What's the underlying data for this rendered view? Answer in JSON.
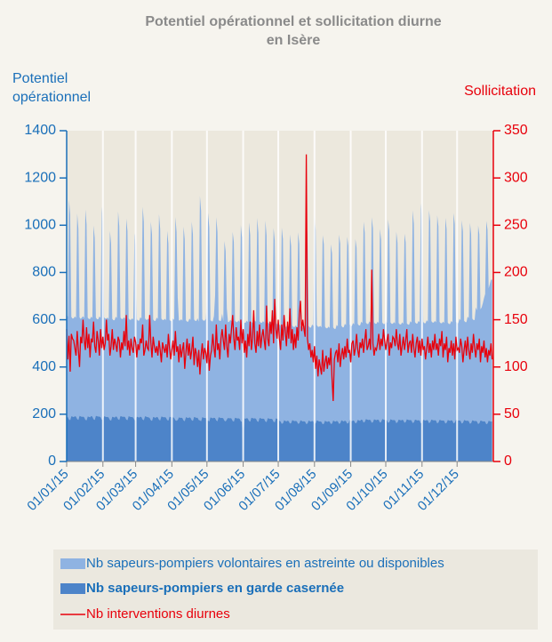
{
  "chart_data": {
    "type": "area-line",
    "title": [
      "Potentiel opérationnel et sollicitation diurne",
      "en Isère"
    ],
    "y_label": [
      "Potentiel",
      "opérationnel"
    ],
    "y2_label": "Sollicitation",
    "xlim": [
      0,
      365
    ],
    "xticks": [
      {
        "value": 0,
        "label": "01/01/15"
      },
      {
        "value": 31,
        "label": "01/02/15"
      },
      {
        "value": 59,
        "label": "01/03/15"
      },
      {
        "value": 90,
        "label": "01/04/15"
      },
      {
        "value": 120,
        "label": "01/05/15"
      },
      {
        "value": 151,
        "label": "01/06/15"
      },
      {
        "value": 181,
        "label": "01/07/15"
      },
      {
        "value": 212,
        "label": "01/08/15"
      },
      {
        "value": 243,
        "label": "01/09/15"
      },
      {
        "value": 273,
        "label": "01/10/15"
      },
      {
        "value": 304,
        "label": "01/11/15"
      },
      {
        "value": 334,
        "label": "01/12/15"
      }
    ],
    "ylim": [
      0,
      1400
    ],
    "yticks": [
      0,
      200,
      400,
      600,
      800,
      1000,
      1200,
      1400
    ],
    "y2lim": [
      0,
      350
    ],
    "y2ticks": [
      0,
      50,
      100,
      150,
      200,
      250,
      300,
      350
    ],
    "grid": true,
    "stacked": true,
    "series": [
      {
        "name": "Nb sapeurs-pompiers volontaires en astreinte ou disponibles",
        "color": "#8fb3e2",
        "kind": "area",
        "values": [
          430,
          425,
          930,
          870,
          420,
          415,
          418,
          422,
          418,
          870,
          810,
          416,
          412,
          420,
          425,
          420,
          890,
          830,
          418,
          414,
          416,
          420,
          418,
          820,
          770,
          415,
          410,
          412,
          424,
          420,
          900,
          840,
          418,
          415,
          417,
          420,
          416,
          800,
          750,
          414,
          410,
          412,
          422,
          418,
          880,
          820,
          416,
          412,
          414,
          420,
          416,
          850,
          800,
          414,
          410,
          412,
          418,
          415,
          790,
          740,
          412,
          408,
          410,
          420,
          418,
          900,
          840,
          414,
          410,
          412,
          418,
          414,
          840,
          790,
          412,
          408,
          410,
          420,
          416,
          870,
          810,
          414,
          410,
          412,
          416,
          412,
          800,
          750,
          410,
          406,
          408,
          418,
          414,
          860,
          800,
          520,
          410,
          412,
          416,
          412,
          820,
          770,
          410,
          406,
          408,
          418,
          414,
          840,
          790,
          412,
          408,
          410,
          420,
          416,
          950,
          890,
          414,
          410,
          412,
          418,
          500,
          880,
          820,
          412,
          408,
          410,
          430,
          520,
          860,
          800,
          412,
          408,
          412,
          440,
          410,
          760,
          720,
          470,
          405,
          408,
          416,
          412,
          800,
          760,
          410,
          406,
          408,
          414,
          410,
          830,
          780,
          408,
          404,
          406,
          412,
          408,
          840,
          790,
          406,
          402,
          404,
          414,
          410,
          860,
          800,
          408,
          404,
          406,
          412,
          408,
          850,
          790,
          406,
          402,
          404,
          410,
          406,
          820,
          770,
          404,
          400,
          402,
          408,
          404,
          830,
          780,
          402,
          398,
          400,
          406,
          402,
          800,
          750,
          400,
          396,
          398,
          404,
          400,
          810,
          760,
          398,
          394,
          396,
          406,
          402,
          860,
          800,
          400,
          396,
          398,
          408,
          404,
          880,
          820,
          402,
          398,
          400,
          404,
          400,
          800,
          760,
          398,
          394,
          396,
          400,
          396,
          760,
          720,
          394,
          390,
          392,
          406,
          402,
          800,
          760,
          400,
          396,
          398,
          410,
          406,
          790,
          750,
          404,
          400,
          402,
          412,
          408,
          780,
          740,
          406,
          402,
          404,
          414,
          410,
          850,
          800,
          408,
          404,
          406,
          416,
          412,
          870,
          820,
          410,
          406,
          408,
          414,
          410,
          820,
          770,
          408,
          404,
          406,
          416,
          412,
          860,
          810,
          410,
          406,
          408,
          414,
          410,
          810,
          760,
          408,
          404,
          406,
          412,
          408,
          800,
          760,
          406,
          402,
          404,
          418,
          414,
          900,
          840,
          412,
          408,
          410,
          420,
          416,
          930,
          870,
          414,
          410,
          412,
          422,
          418,
          900,
          850,
          416,
          412,
          414,
          420,
          416,
          880,
          830,
          414,
          410,
          412,
          418,
          414,
          870,
          820,
          412,
          408,
          410,
          420,
          416,
          890,
          840,
          414,
          410,
          412,
          430,
          426,
          860,
          810,
          420,
          416,
          418,
          440,
          436,
          850,
          800,
          430,
          426,
          428,
          480,
          470,
          840,
          800,
          470,
          480,
          500,
          520,
          540,
          860,
          820,
          560,
          580,
          600,
          600
        ]
      },
      {
        "name": "Nb sapeurs-pompiers en garde casernée",
        "color": "#4d84c9",
        "kind": "area",
        "values": [
          190,
          188,
          178,
          175,
          192,
          190,
          188,
          192,
          190,
          180,
          176,
          194,
          191,
          189,
          190,
          187,
          177,
          174,
          191,
          189,
          187,
          193,
          190,
          179,
          176,
          194,
          192,
          190,
          190,
          188,
          178,
          175,
          192,
          190,
          188,
          189,
          186,
          176,
          173,
          190,
          188,
          186,
          191,
          189,
          179,
          176,
          193,
          191,
          189,
          190,
          188,
          178,
          175,
          192,
          190,
          188,
          188,
          186,
          176,
          173,
          190,
          188,
          186,
          190,
          188,
          178,
          175,
          192,
          190,
          188,
          187,
          185,
          175,
          172,
          189,
          187,
          185,
          189,
          187,
          177,
          174,
          191,
          189,
          187,
          188,
          186,
          176,
          173,
          190,
          188,
          186,
          187,
          185,
          175,
          172,
          176,
          187,
          185,
          186,
          184,
          174,
          171,
          188,
          186,
          184,
          187,
          185,
          175,
          172,
          189,
          187,
          185,
          186,
          176,
          174,
          171,
          188,
          186,
          184,
          185,
          175,
          173,
          170,
          187,
          185,
          183,
          186,
          184,
          174,
          171,
          188,
          186,
          184,
          185,
          183,
          173,
          170,
          178,
          185,
          183,
          184,
          182,
          172,
          169,
          186,
          184,
          182,
          183,
          181,
          171,
          168,
          20,
          183,
          181,
          184,
          182,
          172,
          169,
          186,
          184,
          182,
          183,
          181,
          171,
          168,
          185,
          183,
          181,
          182,
          180,
          170,
          167,
          184,
          182,
          180,
          181,
          179,
          169,
          166,
          183,
          181,
          179,
          172,
          170,
          160,
          162,
          175,
          172,
          170,
          173,
          171,
          161,
          163,
          176,
          173,
          171,
          172,
          170,
          160,
          162,
          175,
          172,
          170,
          171,
          169,
          159,
          161,
          174,
          171,
          169,
          172,
          170,
          160,
          162,
          175,
          172,
          170,
          170,
          168,
          158,
          160,
          173,
          170,
          168,
          171,
          169,
          159,
          161,
          174,
          171,
          169,
          172,
          170,
          160,
          162,
          175,
          172,
          170,
          173,
          171,
          161,
          163,
          176,
          173,
          171,
          174,
          172,
          162,
          164,
          177,
          174,
          172,
          178,
          176,
          165,
          168,
          180,
          178,
          176,
          177,
          175,
          164,
          167,
          179,
          177,
          175,
          178,
          176,
          165,
          168,
          180,
          178,
          176,
          177,
          175,
          164,
          167,
          179,
          177,
          175,
          176,
          174,
          163,
          166,
          178,
          176,
          174,
          177,
          175,
          164,
          167,
          179,
          177,
          175,
          176,
          174,
          163,
          166,
          178,
          176,
          174,
          175,
          173,
          162,
          165,
          177,
          175,
          173,
          176,
          174,
          163,
          166,
          178,
          176,
          174,
          175,
          173,
          162,
          165,
          177,
          175,
          173,
          174,
          172,
          161,
          164,
          176,
          174,
          172,
          175,
          173,
          162,
          165,
          177,
          175,
          173,
          174,
          172,
          161,
          164,
          176,
          174,
          172,
          173,
          171,
          160,
          163,
          175,
          173,
          171,
          172,
          170,
          159,
          162,
          174,
          172,
          170,
          171,
          169,
          158,
          161,
          173,
          171,
          169,
          170
        ]
      },
      {
        "name": "Nb interventions diurnes",
        "color": "#e8000b",
        "kind": "line",
        "axis": "y2",
        "values": [
          140,
          108,
          133,
          95,
          135,
          130,
          128,
          120,
          112,
          138,
          118,
          100,
          132,
          125,
          150,
          128,
          118,
          142,
          120,
          135,
          110,
          130,
          126,
          148,
          122,
          115,
          138,
          128,
          112,
          140,
          120,
          132,
          118,
          125,
          150,
          128,
          135,
          112,
          122,
          140,
          118,
          130,
          124,
          116,
          132,
          128,
          110,
          126,
          118,
          138,
          122,
          155,
          118,
          128,
          112,
          130,
          120,
          115,
          132,
          126,
          110,
          124,
          118,
          130,
          125,
          145,
          112,
          118,
          128,
          120,
          118,
          155,
          126,
          110,
          132,
          122,
          115,
          122,
          112,
          128,
          118,
          105,
          126,
          120,
          115,
          124,
          110,
          135,
          120,
          108,
          118,
          128,
          112,
          138,
          116,
          122,
          105,
          124,
          110,
          118,
          126,
          98,
          115,
          130,
          112,
          125,
          108,
          118,
          132,
          102,
          120,
          114,
          100,
          118,
          92,
          112,
          125,
          108,
          120,
          115,
          104,
          128,
          96,
          112,
          118,
          135,
          120,
          110,
          145,
          118,
          125,
          108,
          130,
          140,
          128,
          118,
          145,
          122,
          110,
          135,
          125,
          140,
          155,
          130,
          118,
          142,
          128,
          132,
          118,
          150,
          125,
          140,
          115,
          128,
          110,
          135,
          122,
          148,
          118,
          130,
          160,
          125,
          115,
          138,
          122,
          145,
          120,
          132,
          140,
          128,
          118,
          165,
          130,
          122,
          148,
          135,
          160,
          125,
          172,
          140,
          130,
          150,
          130,
          118,
          145,
          128,
          155,
          138,
          122,
          148,
          130,
          162,
          125,
          140,
          118,
          135,
          120,
          142,
          128,
          155,
          170,
          138,
          150,
          140,
          132,
          325,
          130,
          118,
          125,
          110,
          118,
          105,
          122,
          98,
          112,
          90,
          108,
          100,
          92,
          118,
          95,
          105,
          112,
          98,
          110,
          102,
          120,
          88,
          64,
          108,
          115,
          118,
          105,
          125,
          100,
          112,
          120,
          108,
          122,
          110,
          130,
          115,
          118,
          105,
          125,
          128,
          112,
          120,
          135,
          118,
          110,
          126,
          120,
          130,
          115,
          128,
          140,
          118,
          122,
          130,
          118,
          203,
          125,
          112,
          120,
          118,
          125,
          135,
          118,
          130,
          122,
          140,
          128,
          118,
          128,
          135,
          112,
          126,
          120,
          132,
          130,
          122,
          140,
          125,
          118,
          135,
          112,
          122,
          132,
          118,
          128,
          140,
          115,
          125,
          128,
          115,
          135,
          120,
          110,
          125,
          132,
          115,
          128,
          112,
          130,
          118,
          122,
          108,
          120,
          132,
          115,
          125,
          110,
          128,
          118,
          135,
          118,
          125,
          112,
          130,
          122,
          138,
          110,
          125,
          118,
          132,
          105,
          120,
          115,
          128,
          112,
          125,
          108,
          132,
          118,
          120,
          115,
          130,
          122,
          105,
          118,
          128,
          112,
          132,
          118,
          108,
          125,
          115,
          135,
          120,
          110,
          125,
          118,
          130,
          105,
          122,
          115,
          128,
          110,
          120,
          105,
          118,
          112,
          125,
          108
        ]
      }
    ]
  }
}
